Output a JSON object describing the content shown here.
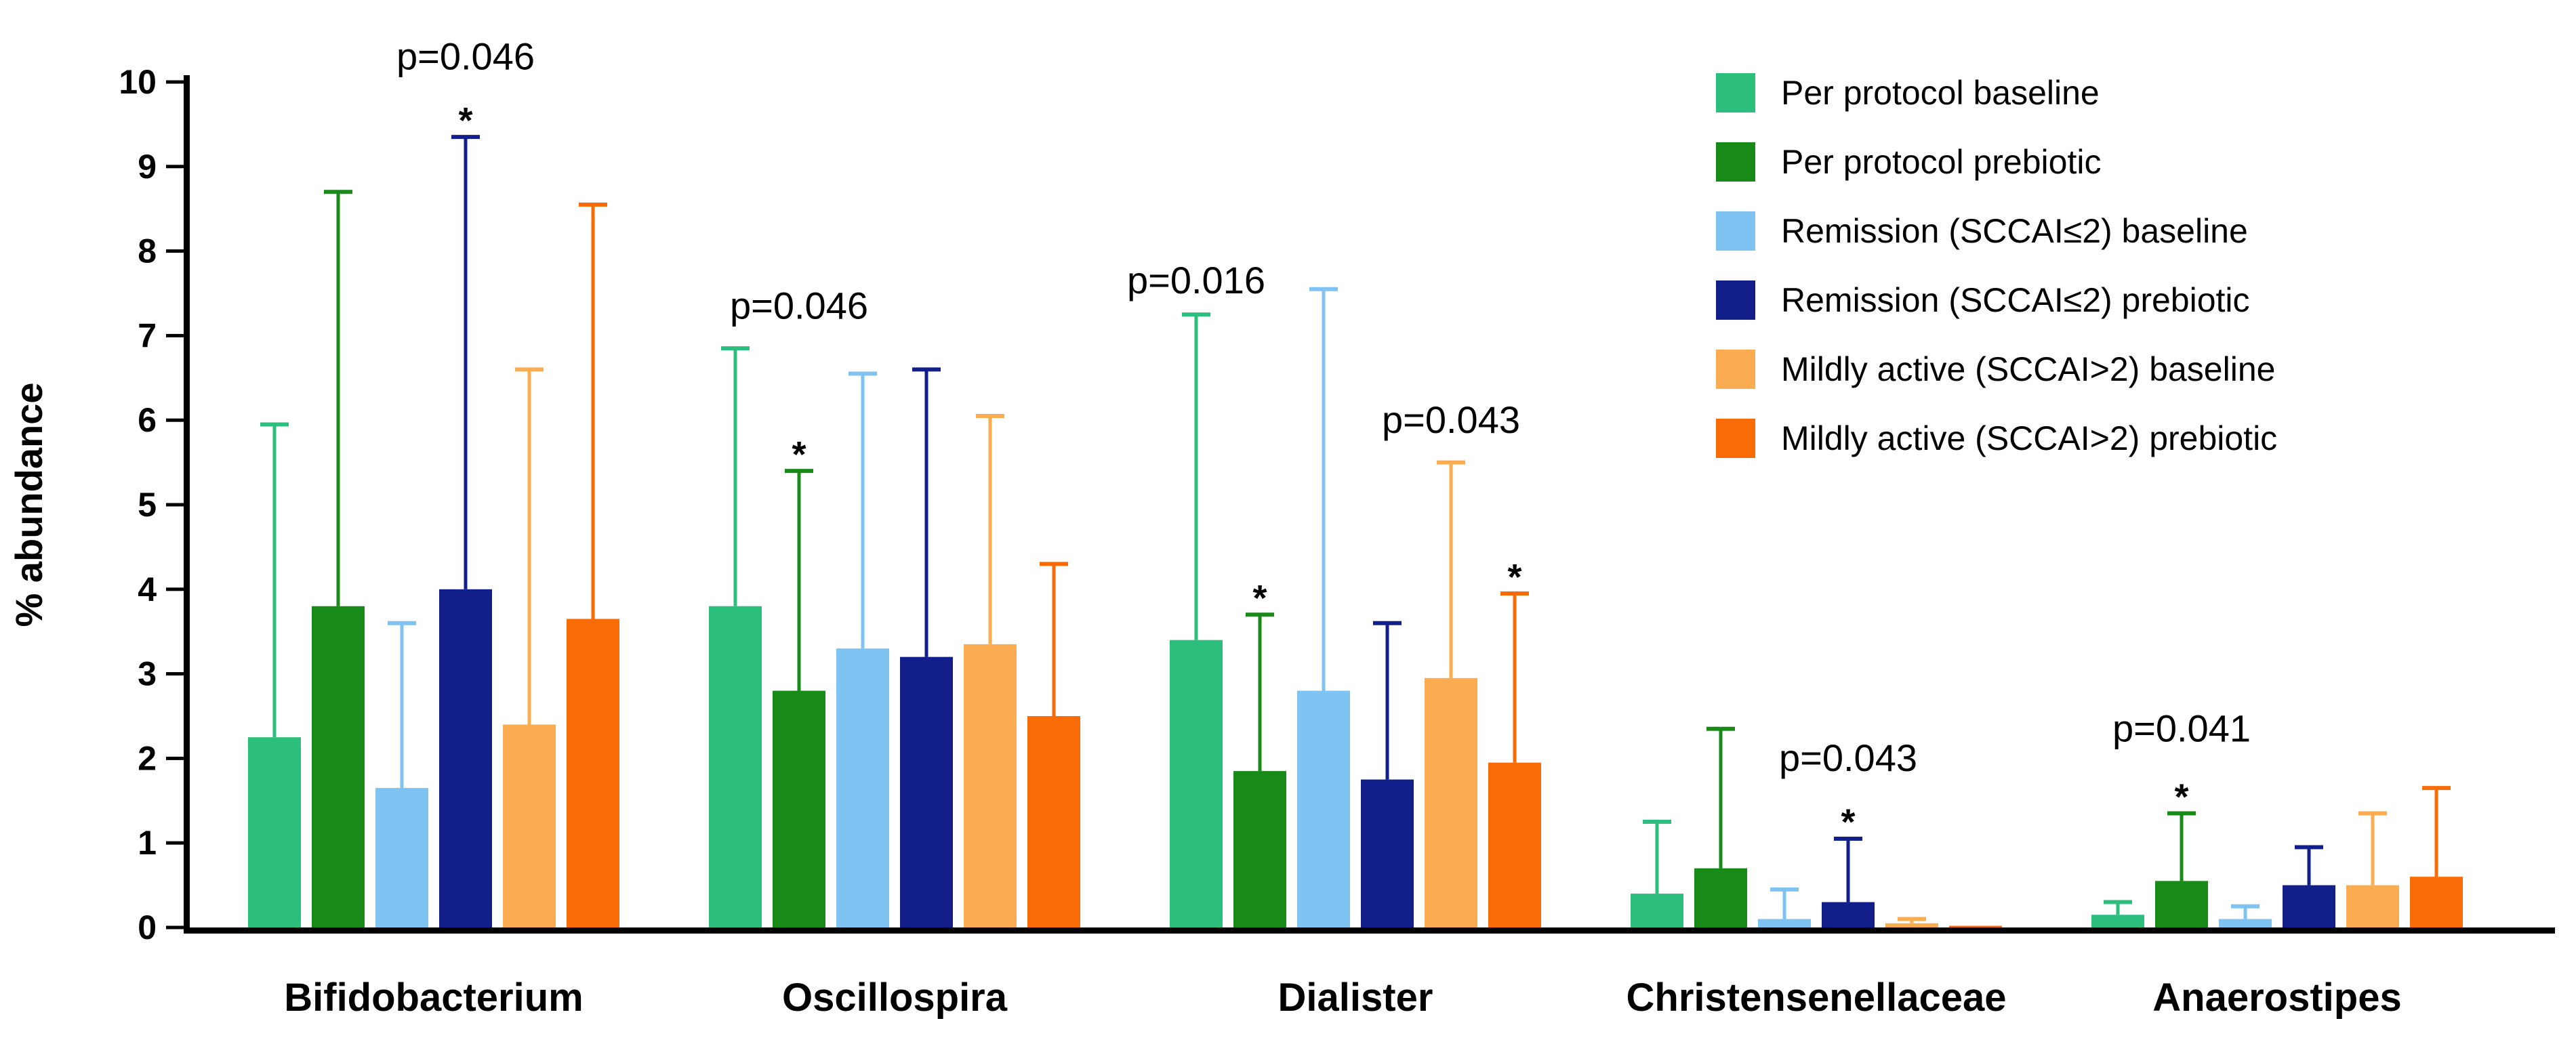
{
  "chart_data": {
    "type": "bar",
    "title": "",
    "xlabel": "",
    "ylabel": "% abundance",
    "ylim": [
      0,
      10
    ],
    "yticks": [
      0,
      1,
      2,
      3,
      4,
      5,
      6,
      7,
      8,
      9,
      10
    ],
    "grid": false,
    "legend_position": "top-right",
    "error_bars": "upper-only",
    "categories": [
      "Bifidobacterium",
      "Oscillospira",
      "Dialister",
      "Christensenellaceae",
      "Anaerostipes"
    ],
    "series": [
      {
        "name": "Per protocol baseline",
        "color": "#2CBE7D",
        "values": [
          2.25,
          3.8,
          3.4,
          0.4,
          0.15
        ],
        "errors": [
          3.7,
          3.05,
          3.85,
          0.85,
          0.15
        ]
      },
      {
        "name": "Per protocol prebiotic",
        "color": "#178A17",
        "values": [
          3.8,
          2.8,
          1.85,
          0.7,
          0.55
        ],
        "errors": [
          4.9,
          2.6,
          1.85,
          1.65,
          0.8
        ]
      },
      {
        "name": "Remission (SCCAI≤2)  baseline",
        "color": "#7FC3F2",
        "values": [
          1.65,
          3.3,
          2.8,
          0.1,
          0.1
        ],
        "errors": [
          1.95,
          3.25,
          4.75,
          0.35,
          0.15
        ]
      },
      {
        "name": "Remission (SCCAI≤2) prebiotic",
        "color": "#121F8B",
        "values": [
          4.0,
          3.2,
          1.75,
          0.3,
          0.5
        ],
        "errors": [
          5.35,
          3.4,
          1.85,
          0.75,
          0.45
        ]
      },
      {
        "name": "Mildly active (SCCAI>2) baseline",
        "color": "#FBAC50",
        "values": [
          2.4,
          3.35,
          2.95,
          0.05,
          0.5
        ],
        "errors": [
          4.2,
          2.7,
          2.55,
          0.05,
          0.85
        ]
      },
      {
        "name": "Mildly active (SCCAI>2) prebiotic",
        "color": "#F96B07",
        "values": [
          3.65,
          2.5,
          1.95,
          0.02,
          0.6
        ],
        "errors": [
          4.9,
          1.8,
          2.0,
          0,
          1.05
        ]
      }
    ],
    "annotations": {
      "pvalues": [
        {
          "label": "p=0.046",
          "group": 0,
          "bar": 3,
          "y": 10.15
        },
        {
          "label": "p=0.046",
          "group": 1,
          "bar": 1,
          "y": 7.2
        },
        {
          "label": "p=0.016",
          "group": 2,
          "bar": 0,
          "y": 7.5
        },
        {
          "label": "p=0.043",
          "group": 2,
          "bar": 4,
          "y": 5.85
        },
        {
          "label": "p=0.043",
          "group": 3,
          "bar": 3,
          "y": 1.85
        },
        {
          "label": "p=0.041",
          "group": 4,
          "bar": 1,
          "y": 2.2
        }
      ],
      "stars": [
        {
          "label": "*",
          "group": 0,
          "bar": 3,
          "y": 9.4
        },
        {
          "label": "*",
          "group": 1,
          "bar": 1,
          "y": 5.45
        },
        {
          "label": "*",
          "group": 2,
          "bar": 1,
          "y": 3.75
        },
        {
          "label": "*",
          "group": 2,
          "bar": 5,
          "y": 4.0
        },
        {
          "label": "*",
          "group": 3,
          "bar": 3,
          "y": 1.1
        },
        {
          "label": "*",
          "group": 4,
          "bar": 1,
          "y": 1.4
        }
      ]
    },
    "colors": {
      "axis": "#000000",
      "background": "#ffffff"
    }
  }
}
